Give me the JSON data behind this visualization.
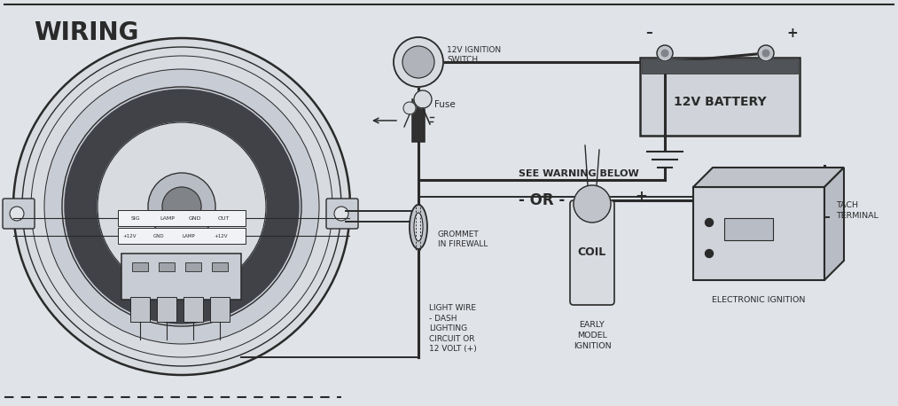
{
  "background_color": "#e0e3e8",
  "line_color": "#2a2a2a",
  "fig_width": 10.13,
  "fig_height": 4.58,
  "dpi": 100,
  "labels": {
    "wiring": "WIRING",
    "fuse": "Fuse",
    "ignition_switch": "12V IGNITION\nSWITCH",
    "battery": "12V BATTERY",
    "see_warning": "SEE WARNING BELOW",
    "or": "- OR -",
    "grommet": "GROMMET\nIN FIREWALL",
    "light_wire": "LIGHT WIRE\n- DASH\nLIGHTING\nCIRCUIT OR\n12 VOLT (+)",
    "coil": "COIL",
    "early_model": "EARLY\nMODEL\nIGNITION",
    "tach_terminal": "TACH\nTERMINAL",
    "electronic_ignition": "ELECTRONIC IGNITION",
    "minus": "–",
    "plus": "+",
    "sig": "SIG",
    "lamp": "LAMP",
    "gnd": "GND",
    "out": "OUT",
    "plus12v": "+12V",
    "gnd2": "GND",
    "lamp2": "LAMP",
    "plus12v2": "+12V"
  }
}
